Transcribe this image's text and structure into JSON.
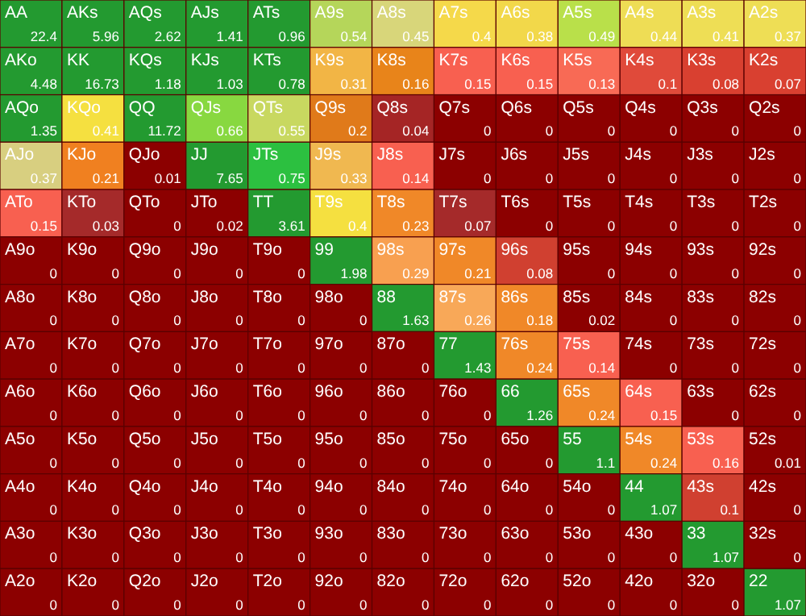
{
  "chart_data": {
    "type": "heatmap",
    "data_labels": true,
    "categories": [
      null,
      null,
      null,
      null,
      null,
      null,
      null,
      null,
      null,
      null,
      null,
      null,
      null
    ],
    "y_categories": [
      null,
      null,
      null,
      null,
      null,
      null,
      null,
      null,
      null,
      null,
      null,
      null,
      null
    ],
    "cells": [
      [
        22.4,
        5.96,
        2.62,
        1.41,
        0.96,
        0.54,
        0.45,
        0.4,
        0.38,
        0.49,
        0.44,
        0.41,
        0.37
      ],
      [
        4.48,
        16.73,
        1.18,
        1.03,
        0.78,
        0.31,
        0.16,
        0.15,
        0.15,
        0.13,
        0.1,
        0.08,
        0.07
      ],
      [
        1.35,
        0.41,
        11.72,
        0.66,
        0.55,
        0.2,
        0.04,
        0,
        0,
        0,
        0,
        0,
        0
      ],
      [
        0.37,
        0.21,
        0.01,
        7.65,
        0.75,
        0.33,
        0.14,
        0,
        0,
        0,
        0,
        0,
        0
      ],
      [
        0.15,
        0.03,
        0,
        0.02,
        3.61,
        0.4,
        0.23,
        0.07,
        0,
        0,
        0,
        0,
        0
      ],
      [
        0,
        0,
        0,
        0,
        0,
        1.98,
        0.29,
        0.21,
        0.08,
        0,
        0,
        0,
        0
      ],
      [
        0,
        0,
        0,
        0,
        0,
        0,
        1.63,
        0.26,
        0.18,
        0.02,
        0,
        0,
        0
      ],
      [
        0,
        0,
        0,
        0,
        0,
        0,
        0,
        1.43,
        0.24,
        0.14,
        0,
        0,
        0
      ],
      [
        0,
        0,
        0,
        0,
        0,
        0,
        0,
        0,
        1.26,
        0.24,
        0.15,
        0,
        0
      ],
      [
        0,
        0,
        0,
        0,
        0,
        0,
        0,
        0,
        0,
        1.1,
        0.24,
        0.16,
        0.01
      ],
      [
        0,
        0,
        0,
        0,
        0,
        0,
        0,
        0,
        0,
        0,
        1.07,
        0.1,
        0
      ],
      [
        0,
        0,
        0,
        0,
        0,
        0,
        0,
        0,
        0,
        0,
        0,
        1.07,
        0
      ],
      [
        0,
        0,
        0,
        0,
        0,
        0,
        0,
        0,
        0,
        0,
        0,
        0,
        1.07
      ]
    ],
    "annotations": [
      "AA",
      "AKs",
      "AQs",
      "AJs",
      "ATs",
      "A9s",
      "A8s",
      "A7s",
      "A6s",
      "A5s",
      "A4s",
      "A3s",
      "A2s",
      "AKo",
      "KK",
      "KQs",
      "KJs",
      "KTs",
      "K9s",
      "K8s",
      "K7s",
      "K6s",
      "K5s",
      "K4s",
      "K3s",
      "K2s",
      "AQo",
      "KQo",
      "QQ",
      "QJs",
      "QTs",
      "Q9s",
      "Q8s",
      "Q7s",
      "Q6s",
      "Q5s",
      "Q4s",
      "Q3s",
      "Q2s",
      "AJo",
      "KJo",
      "QJo",
      "JJ",
      "JTs",
      "J9s",
      "J8s",
      "J7s",
      "J6s",
      "J5s",
      "J4s",
      "J3s",
      "J2s",
      "ATo",
      "KTo",
      "QTo",
      "JTo",
      "TT",
      "T9s",
      "T8s",
      "T7s",
      "T6s",
      "T5s",
      "T4s",
      "T3s",
      "T2s",
      "A9o",
      "K9o",
      "Q9o",
      "J9o",
      "T9o",
      "99",
      "98s",
      "97s",
      "96s",
      "95s",
      "94s",
      "93s",
      "92s",
      "A8o",
      "K8o",
      "Q8o",
      "J8o",
      "T8o",
      "98o",
      "88",
      "87s",
      "86s",
      "85s",
      "84s",
      "83s",
      "82s",
      "A7o",
      "K7o",
      "Q7o",
      "J7o",
      "T7o",
      "97o",
      "87o",
      "77",
      "76s",
      "75s",
      "74s",
      "73s",
      "72s",
      "A6o",
      "K6o",
      "Q6o",
      "J6o",
      "T6o",
      "96o",
      "86o",
      "76o",
      "66",
      "65s",
      "64s",
      "63s",
      "62s",
      "A5o",
      "K5o",
      "Q5o",
      "J5o",
      "T5o",
      "95o",
      "85o",
      "75o",
      "65o",
      "55",
      "54s",
      "53s",
      "52s",
      "A4o",
      "K4o",
      "Q4o",
      "J4o",
      "T4o",
      "94o",
      "84o",
      "74o",
      "64o",
      "54o",
      "44",
      "43s",
      "42s",
      "A3o",
      "K3o",
      "Q3o",
      "J3o",
      "T3o",
      "93o",
      "83o",
      "73o",
      "63o",
      "53o",
      "43o",
      "33",
      "32s",
      "A2o",
      "K2o",
      "Q2o",
      "J2o",
      "T2o",
      "92o",
      "82o",
      "72o",
      "62o",
      "52o",
      "42o",
      "32o",
      "22"
    ],
    "colors": [
      [
        "#239a30",
        "#239a30",
        "#239a30",
        "#239a30",
        "#239a30",
        "#b5d65a",
        "#d8d67a",
        "#f5d94a",
        "#f2d84a",
        "#b9e04a",
        "#eedd55",
        "#eede55",
        "#eede55"
      ],
      [
        "#239a30",
        "#239a30",
        "#239a30",
        "#239a30",
        "#239a30",
        "#f2b545",
        "#e8841a",
        "#f86050",
        "#f86050",
        "#f86a55",
        "#e04a3a",
        "#d94030",
        "#d94030"
      ],
      [
        "#239a30",
        "#f5e040",
        "#239a30",
        "#88d840",
        "#c8d860",
        "#e07a1a",
        "#a52525",
        "#8c0000",
        "#8c0000",
        "#8c0000",
        "#8c0000",
        "#8c0000",
        "#8c0000"
      ],
      [
        "#d8cf80",
        "#f08020",
        "#8c0000",
        "#239a30",
        "#2cc040",
        "#f0b850",
        "#f86050",
        "#8c0000",
        "#8c0000",
        "#8c0000",
        "#8c0000",
        "#8c0000",
        "#8c0000"
      ],
      [
        "#f86050",
        "#a52a2a",
        "#8c0000",
        "#8c0000",
        "#239a30",
        "#f5e040",
        "#f08828",
        "#a52a2a",
        "#8c0000",
        "#8c0000",
        "#8c0000",
        "#8c0000",
        "#8c0000"
      ],
      [
        "#8c0000",
        "#8c0000",
        "#8c0000",
        "#8c0000",
        "#8c0000",
        "#239a30",
        "#f8a050",
        "#f08828",
        "#d04030",
        "#8c0000",
        "#8c0000",
        "#8c0000",
        "#8c0000"
      ],
      [
        "#8c0000",
        "#8c0000",
        "#8c0000",
        "#8c0000",
        "#8c0000",
        "#8c0000",
        "#239a30",
        "#f8a858",
        "#f08828",
        "#8c0000",
        "#8c0000",
        "#8c0000",
        "#8c0000"
      ],
      [
        "#8c0000",
        "#8c0000",
        "#8c0000",
        "#8c0000",
        "#8c0000",
        "#8c0000",
        "#8c0000",
        "#239a30",
        "#f08828",
        "#f86050",
        "#8c0000",
        "#8c0000",
        "#8c0000"
      ],
      [
        "#8c0000",
        "#8c0000",
        "#8c0000",
        "#8c0000",
        "#8c0000",
        "#8c0000",
        "#8c0000",
        "#8c0000",
        "#239a30",
        "#f08828",
        "#f86050",
        "#8c0000",
        "#8c0000"
      ],
      [
        "#8c0000",
        "#8c0000",
        "#8c0000",
        "#8c0000",
        "#8c0000",
        "#8c0000",
        "#8c0000",
        "#8c0000",
        "#8c0000",
        "#239a30",
        "#f08828",
        "#f86050",
        "#8c0000"
      ],
      [
        "#8c0000",
        "#8c0000",
        "#8c0000",
        "#8c0000",
        "#8c0000",
        "#8c0000",
        "#8c0000",
        "#8c0000",
        "#8c0000",
        "#8c0000",
        "#239a30",
        "#d04030",
        "#8c0000"
      ],
      [
        "#8c0000",
        "#8c0000",
        "#8c0000",
        "#8c0000",
        "#8c0000",
        "#8c0000",
        "#8c0000",
        "#8c0000",
        "#8c0000",
        "#8c0000",
        "#8c0000",
        "#239a30",
        "#8c0000"
      ],
      [
        "#8c0000",
        "#8c0000",
        "#8c0000",
        "#8c0000",
        "#8c0000",
        "#8c0000",
        "#8c0000",
        "#8c0000",
        "#8c0000",
        "#8c0000",
        "#8c0000",
        "#8c0000",
        "#239a30"
      ]
    ]
  }
}
